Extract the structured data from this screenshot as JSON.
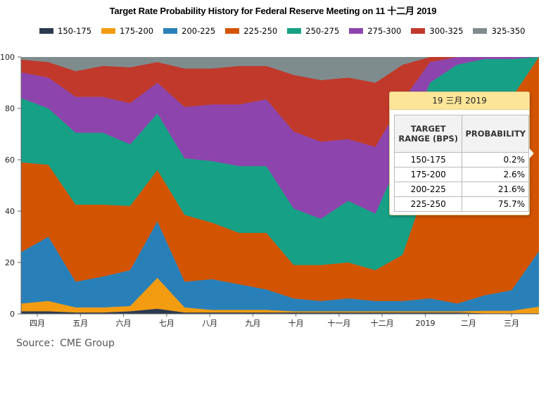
{
  "chart_data": {
    "type": "area",
    "stacked": true,
    "title": "Target Rate Probability History for Federal Reserve Meeting on 11 十二月 2019",
    "ylim": [
      0,
      100
    ],
    "y_ticks": [
      0,
      20,
      40,
      60,
      80,
      100
    ],
    "x_tick_labels": [
      "四月",
      "五月",
      "六月",
      "七月",
      "八月",
      "九月",
      "十月",
      "十一月",
      "十二月",
      "2019",
      "二月",
      "三月"
    ],
    "grid": false,
    "legend_position": "top",
    "series": [
      {
        "name": "150-175",
        "color": "#2b3a4f",
        "values": [
          1,
          1,
          0.5,
          0.5,
          1,
          2,
          0.5,
          0.5,
          0.5,
          0.5,
          0.5,
          0.5,
          0.5,
          0.5,
          0.5,
          0.5,
          0.5,
          0.2,
          0.2,
          0.2
        ]
      },
      {
        "name": "175-200",
        "color": "#f39c12",
        "values": [
          3,
          4,
          2,
          2,
          2,
          12,
          2,
          1,
          1,
          1,
          0.5,
          0.5,
          0.5,
          0.5,
          0.5,
          0.5,
          0.5,
          1,
          1,
          2.6
        ]
      },
      {
        "name": "200-225",
        "color": "#2980b9",
        "values": [
          20,
          25,
          10,
          12,
          14,
          22,
          10,
          12,
          10,
          8,
          5,
          4,
          5,
          4,
          4,
          5,
          3,
          6,
          8,
          21.6
        ]
      },
      {
        "name": "225-250",
        "color": "#d35400",
        "values": [
          35,
          28,
          30,
          28,
          25,
          20,
          26,
          22,
          20,
          22,
          13,
          14,
          14,
          12,
          18,
          48,
          65,
          70,
          75,
          75.7
        ]
      },
      {
        "name": "250-275",
        "color": "#16a085",
        "values": [
          25,
          22,
          28,
          28,
          24,
          22,
          22,
          24,
          26,
          26,
          22,
          18,
          24,
          22,
          40,
          36,
          28,
          22,
          15,
          0
        ]
      },
      {
        "name": "275-300",
        "color": "#8e44ad",
        "values": [
          10,
          12,
          14,
          14,
          16,
          12,
          20,
          22,
          24,
          26,
          30,
          30,
          24,
          26,
          20,
          8,
          3,
          1,
          1,
          0
        ]
      },
      {
        "name": "300-325",
        "color": "#c0392b",
        "values": [
          5,
          6,
          10,
          12,
          14,
          8,
          15,
          14,
          15,
          13,
          22,
          24,
          24,
          25,
          14,
          2,
          0,
          0,
          0,
          0
        ]
      },
      {
        "name": "325-350",
        "color": "#7f8c8d",
        "values": [
          1,
          2,
          5.5,
          3.5,
          4,
          2,
          4.5,
          4.5,
          3.5,
          3.5,
          6.5,
          8.5,
          7.5,
          10,
          3,
          0,
          0,
          0,
          0,
          0
        ]
      }
    ]
  },
  "tooltip": {
    "date": "19 三月 2019",
    "col1_header": "TARGET RANGE (BPS)",
    "col2_header": "PROBABILITY",
    "rows": [
      {
        "range": "150-175",
        "prob": "0.2%"
      },
      {
        "range": "175-200",
        "prob": "2.6%"
      },
      {
        "range": "200-225",
        "prob": "21.6%"
      },
      {
        "range": "225-250",
        "prob": "75.7%"
      }
    ]
  },
  "source": "Source：CME Group"
}
